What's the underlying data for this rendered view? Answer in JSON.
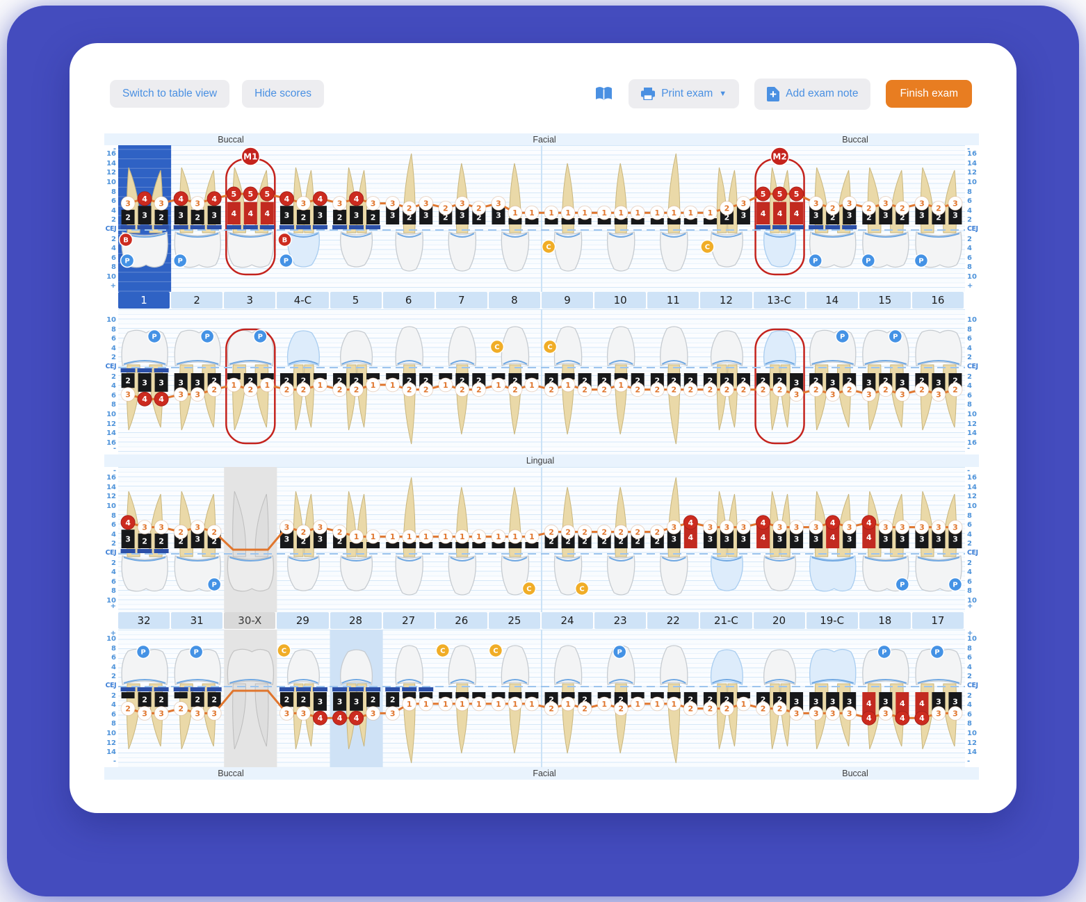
{
  "toolbar": {
    "switch_view": "Switch to table view",
    "hide_scores": "Hide scores",
    "print": "Print exam",
    "add_note": "Add exam note",
    "finish": "Finish exam"
  },
  "bands": {
    "top": [
      "Buccal",
      "Facial",
      "Buccal"
    ],
    "middle": "Lingual",
    "bottom": [
      "Buccal",
      "Facial",
      "Buccal"
    ]
  },
  "rulers": {
    "strip1": {
      "top": "-",
      "above": [
        16,
        14,
        12,
        10,
        8,
        6,
        4,
        2
      ],
      "cej": "CEJ",
      "below": [
        2,
        4,
        6,
        8,
        10
      ],
      "bottom": "+"
    },
    "strip2": {
      "top": "",
      "above": [
        10,
        8,
        6,
        4,
        2
      ],
      "cej": "CEJ",
      "below": [
        2,
        4,
        6,
        8,
        10,
        12,
        14,
        16
      ],
      "bottom": "-"
    },
    "strip3": {
      "top": "-",
      "above": [
        16,
        14,
        12,
        10,
        8,
        6,
        4,
        2
      ],
      "cej": "CEJ",
      "below": [
        2,
        4,
        6,
        8,
        10
      ],
      "bottom": "+"
    },
    "strip4": {
      "top": "+",
      "above": [
        10,
        8,
        6,
        4,
        2
      ],
      "cej": "CEJ",
      "below": [
        2,
        4,
        6,
        8,
        10,
        12,
        14
      ],
      "bottom": "-"
    }
  },
  "upper": {
    "numbers": [
      "1",
      "2",
      "3",
      "4-C",
      "5",
      "6",
      "7",
      "8",
      "9",
      "10",
      "11",
      "12",
      "13-C",
      "14",
      "15",
      "16"
    ],
    "buccal": [
      {
        "n": "1",
        "pd": [
          2,
          3,
          2
        ],
        "gm": [
          3,
          4,
          3
        ],
        "badges": [
          "B",
          "P"
        ],
        "cal": true,
        "selected": true
      },
      {
        "n": "2",
        "pd": [
          3,
          2,
          3
        ],
        "gm": [
          4,
          3,
          4
        ],
        "badges": [
          "P"
        ],
        "cal": true
      },
      {
        "n": "3",
        "pd": [
          4,
          4,
          4
        ],
        "gm": [
          5,
          5,
          5
        ],
        "cal": true,
        "outline": true,
        "mob": "M1"
      },
      {
        "n": "4-C",
        "pd": [
          3,
          2,
          3
        ],
        "gm": [
          4,
          3,
          4
        ],
        "badges": [
          "B",
          "P"
        ],
        "cal": true,
        "crown": true
      },
      {
        "n": "5",
        "pd": [
          2,
          3,
          2
        ],
        "gm": [
          3,
          4,
          3
        ],
        "cal": true
      },
      {
        "n": "6",
        "pd": [
          3,
          2,
          3
        ],
        "gm": [
          3,
          2,
          3
        ]
      },
      {
        "n": "7",
        "pd": [
          2,
          3,
          2
        ],
        "gm": [
          2,
          3,
          2
        ]
      },
      {
        "n": "8",
        "pd": [
          3,
          1,
          1
        ],
        "gm": [
          3,
          1,
          1
        ]
      },
      {
        "n": "9",
        "pd": [
          1,
          1,
          1
        ],
        "gm": [
          1,
          1,
          1
        ],
        "badges": [
          "C"
        ]
      },
      {
        "n": "10",
        "pd": [
          1,
          1,
          1
        ],
        "gm": [
          1,
          1,
          1
        ]
      },
      {
        "n": "11",
        "pd": [
          1,
          1,
          1
        ],
        "gm": [
          1,
          1,
          1
        ]
      },
      {
        "n": "12",
        "pd": [
          1,
          2,
          3
        ],
        "gm": [
          1,
          2,
          3
        ],
        "badges": [
          "C"
        ]
      },
      {
        "n": "13-C",
        "pd": [
          4,
          4,
          4
        ],
        "gm": [
          5,
          5,
          5
        ],
        "cal": true,
        "outline": true,
        "crown": true,
        "mob": "M2"
      },
      {
        "n": "14",
        "pd": [
          3,
          2,
          3
        ],
        "gm": [
          3,
          2,
          3
        ],
        "badges": [
          "P"
        ],
        "cal": true
      },
      {
        "n": "15",
        "pd": [
          2,
          3,
          2
        ],
        "gm": [
          2,
          3,
          2
        ],
        "badges": [
          "P"
        ]
      },
      {
        "n": "16",
        "pd": [
          3,
          2,
          3
        ],
        "gm": [
          3,
          2,
          3
        ],
        "badges": [
          "P"
        ]
      }
    ],
    "lingual": [
      {
        "n": "1",
        "pd": [
          2,
          3,
          3
        ],
        "gm": [
          3,
          4,
          4
        ],
        "badges": [
          "P"
        ],
        "cal": true
      },
      {
        "n": "2",
        "pd": [
          3,
          3,
          2
        ],
        "gm": [
          3,
          3,
          2
        ],
        "badges": [
          "P"
        ]
      },
      {
        "n": "3",
        "pd": [
          1,
          2,
          1
        ],
        "gm": [
          1,
          2,
          1
        ],
        "badges": [
          "P"
        ],
        "outline": true
      },
      {
        "n": "4-C",
        "pd": [
          2,
          2,
          1
        ],
        "gm": [
          2,
          2,
          1
        ],
        "crown": true
      },
      {
        "n": "5",
        "pd": [
          2,
          2,
          1
        ],
        "gm": [
          2,
          2,
          1
        ]
      },
      {
        "n": "6",
        "pd": [
          1,
          2,
          2
        ],
        "gm": [
          1,
          2,
          2
        ]
      },
      {
        "n": "7",
        "pd": [
          1,
          2,
          2
        ],
        "gm": [
          1,
          2,
          2
        ]
      },
      {
        "n": "8",
        "pd": [
          1,
          2,
          1
        ],
        "gm": [
          1,
          2,
          1
        ],
        "badges": [
          "C"
        ]
      },
      {
        "n": "9",
        "pd": [
          2,
          1,
          2
        ],
        "gm": [
          2,
          1,
          2
        ],
        "badges": [
          "C"
        ]
      },
      {
        "n": "10",
        "pd": [
          2,
          1,
          2
        ],
        "gm": [
          2,
          1,
          2
        ]
      },
      {
        "n": "11",
        "pd": [
          2,
          2,
          2
        ],
        "gm": [
          2,
          2,
          2
        ]
      },
      {
        "n": "12",
        "pd": [
          2,
          2,
          2
        ],
        "gm": [
          2,
          2,
          2
        ]
      },
      {
        "n": "13-C",
        "pd": [
          2,
          2,
          3
        ],
        "gm": [
          2,
          2,
          3
        ],
        "outline": true,
        "crown": true
      },
      {
        "n": "14",
        "pd": [
          2,
          3,
          2
        ],
        "gm": [
          2,
          3,
          2
        ],
        "badges": [
          "P"
        ]
      },
      {
        "n": "15",
        "pd": [
          3,
          2,
          3
        ],
        "gm": [
          3,
          2,
          3
        ],
        "badges": [
          "P"
        ]
      },
      {
        "n": "16",
        "pd": [
          2,
          3,
          2
        ],
        "gm": [
          2,
          3,
          2
        ]
      }
    ]
  },
  "lower": {
    "numbers": [
      "32",
      "31",
      "30-X",
      "29",
      "28",
      "27",
      "26",
      "25",
      "24",
      "23",
      "22",
      "21-C",
      "20",
      "19-C",
      "18",
      "17"
    ],
    "lingual": [
      {
        "n": "32",
        "pd": [
          3,
          2,
          2
        ],
        "gm": [
          4,
          3,
          3
        ],
        "cal": true
      },
      {
        "n": "31",
        "pd": [
          2,
          3,
          2
        ],
        "gm": [
          2,
          3,
          2
        ],
        "badges": [
          "P"
        ]
      },
      {
        "n": "30-X",
        "missing": true
      },
      {
        "n": "29",
        "pd": [
          3,
          2,
          3
        ],
        "gm": [
          3,
          2,
          3
        ]
      },
      {
        "n": "28",
        "pd": [
          2,
          1,
          1
        ],
        "gm": [
          2,
          1,
          1
        ]
      },
      {
        "n": "27",
        "pd": [
          1,
          1,
          1
        ],
        "gm": [
          1,
          1,
          1
        ]
      },
      {
        "n": "26",
        "pd": [
          1,
          1,
          1
        ],
        "gm": [
          1,
          1,
          1
        ]
      },
      {
        "n": "25",
        "pd": [
          1,
          1,
          1
        ],
        "gm": [
          1,
          1,
          1
        ],
        "badges": [
          "C"
        ]
      },
      {
        "n": "24",
        "pd": [
          2,
          2,
          2
        ],
        "gm": [
          2,
          2,
          2
        ],
        "badges": [
          "C"
        ]
      },
      {
        "n": "23",
        "pd": [
          2,
          2,
          2
        ],
        "gm": [
          2,
          2,
          2
        ]
      },
      {
        "n": "22",
        "pd": [
          2,
          3,
          4
        ],
        "gm": [
          2,
          3,
          4
        ]
      },
      {
        "n": "21-C",
        "pd": [
          3,
          3,
          3
        ],
        "gm": [
          3,
          3,
          3
        ],
        "crown": true
      },
      {
        "n": "20",
        "pd": [
          4,
          3,
          3
        ],
        "gm": [
          4,
          3,
          3
        ]
      },
      {
        "n": "19-C",
        "pd": [
          3,
          4,
          3
        ],
        "gm": [
          3,
          4,
          3
        ],
        "crown": true
      },
      {
        "n": "18",
        "pd": [
          4,
          3,
          3
        ],
        "gm": [
          4,
          3,
          3
        ],
        "badges": [
          "P"
        ]
      },
      {
        "n": "17",
        "pd": [
          3,
          3,
          3
        ],
        "gm": [
          3,
          3,
          3
        ],
        "badges": [
          "P"
        ]
      }
    ],
    "buccal": [
      {
        "n": "32",
        "pd": [
          1,
          2,
          2
        ],
        "gm": [
          2,
          3,
          3
        ],
        "badges": [
          "P"
        ],
        "cal": true
      },
      {
        "n": "31",
        "pd": [
          1,
          2,
          2
        ],
        "gm": [
          2,
          3,
          3
        ],
        "badges": [
          "P"
        ],
        "cal": true
      },
      {
        "n": "30-X",
        "missing": true
      },
      {
        "n": "29",
        "pd": [
          2,
          2,
          3
        ],
        "gm": [
          3,
          3,
          4
        ],
        "badges": [
          "C"
        ],
        "cal": true
      },
      {
        "n": "28",
        "pd": [
          3,
          3,
          2
        ],
        "gm": [
          4,
          4,
          3
        ],
        "cal": true,
        "highlight": true
      },
      {
        "n": "27",
        "pd": [
          2,
          1,
          1
        ],
        "gm": [
          3,
          1,
          1
        ],
        "cal": true
      },
      {
        "n": "26",
        "pd": [
          1,
          1,
          1
        ],
        "gm": [
          1,
          1,
          1
        ],
        "badges": [
          "C"
        ]
      },
      {
        "n": "25",
        "pd": [
          1,
          1,
          1
        ],
        "gm": [
          1,
          1,
          1
        ],
        "badges": [
          "C"
        ]
      },
      {
        "n": "24",
        "pd": [
          2,
          1,
          2
        ],
        "gm": [
          2,
          1,
          2
        ]
      },
      {
        "n": "23",
        "pd": [
          1,
          2,
          1
        ],
        "gm": [
          1,
          2,
          1
        ],
        "badges": [
          "P"
        ]
      },
      {
        "n": "22",
        "pd": [
          1,
          1,
          2
        ],
        "gm": [
          1,
          1,
          2
        ]
      },
      {
        "n": "21-C",
        "pd": [
          2,
          2,
          1
        ],
        "gm": [
          2,
          2,
          1
        ],
        "crown": true
      },
      {
        "n": "20",
        "pd": [
          2,
          2,
          3
        ],
        "gm": [
          2,
          2,
          3
        ]
      },
      {
        "n": "19-C",
        "pd": [
          3,
          3,
          3
        ],
        "gm": [
          3,
          3,
          3
        ],
        "crown": true
      },
      {
        "n": "18",
        "pd": [
          4,
          3,
          4
        ],
        "gm": [
          4,
          3,
          4
        ],
        "badges": [
          "P"
        ]
      },
      {
        "n": "17",
        "pd": [
          4,
          3,
          3
        ],
        "gm": [
          4,
          3,
          3
        ],
        "badges": [
          "P"
        ]
      }
    ]
  },
  "colors": {
    "accent": "#4a90e2",
    "finish_bg": "#e87d21",
    "backdrop": "#444cbe",
    "selected_cell": "#2f62c4",
    "number_cell": "#cfe3f7",
    "missing_cell": "#d9d9d9",
    "box": "#17181a",
    "box_alert": "#c22a20",
    "gm_line": "#e0762e",
    "cej_line": "#9cc4ee",
    "cal_bar": "#2b4fa8",
    "badge_b": "#cc2b1f",
    "badge_p": "#4492e5",
    "badge_c": "#f0ad27",
    "ruler_text": "#4e93da",
    "root": "#ead9a8",
    "root_stroke": "#c9b67e",
    "crown": "#f3f4f5",
    "crown_stroke": "#c6cbd0",
    "crown_restored": "#ddecfb",
    "crown_restored_stroke": "#a9cdf0",
    "missing_tooth": "#dedede",
    "missing_col": "#e4e4e4",
    "highlight_col": "#cfe2f6",
    "band_bg": "#e9f3fd",
    "outline_red": "#c4231d"
  }
}
